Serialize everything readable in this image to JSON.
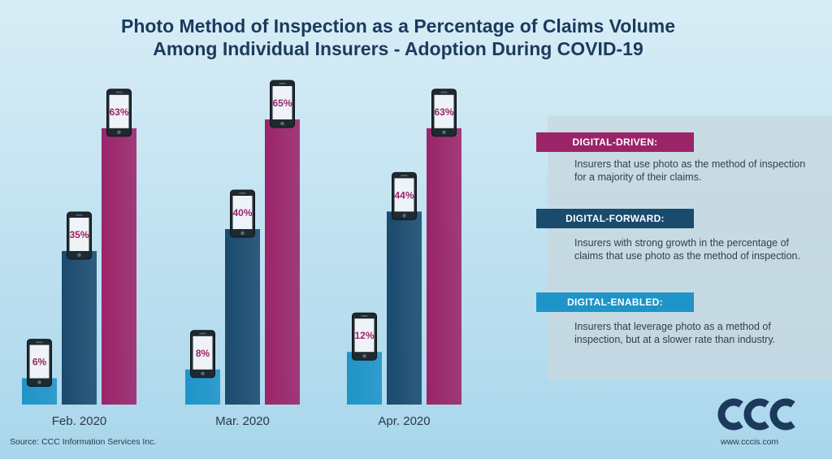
{
  "title_line1": "Photo Method of Inspection as a Percentage of Claims Volume",
  "title_line2": "Among Individual Insurers - Adoption During COVID-19",
  "chart_data": {
    "type": "bar",
    "categories": [
      "Feb. 2020",
      "Mar. 2020",
      "Apr. 2020"
    ],
    "series": [
      {
        "name": "DIGITAL-ENABLED",
        "values": [
          6,
          8,
          12
        ],
        "color": "#1e94c8"
      },
      {
        "name": "DIGITAL-FORWARD",
        "values": [
          35,
          40,
          44
        ],
        "color": "#1a4a6e"
      },
      {
        "name": "DIGITAL-DRIVEN",
        "values": [
          63,
          65,
          63
        ],
        "color": "#9b2469"
      }
    ],
    "value_suffix": "%",
    "data_label_style": "phone-icon",
    "ylim": [
      0,
      100
    ],
    "grid": false,
    "legend_position": "right"
  },
  "legend": [
    {
      "label": "DIGITAL-DRIVEN",
      "color": "#9b2469",
      "description": "Insurers that use photo as the method of inspection for a majority of their claims."
    },
    {
      "label": "DIGITAL-FORWARD:",
      "color": "#1a4a6e",
      "description": "Insurers with strong growth in the percentage of claims that use photo as the method of inspection."
    },
    {
      "label": "DIGITAL-ENABLED:",
      "color": "#1e94c8",
      "description": "Insurers that leverage photo as a method of inspection, but at a slower rate than industry."
    }
  ],
  "legend_labels_display": [
    "DIGITAL-DRIVEN:",
    "DIGITAL-FORWARD:",
    "DIGITAL-ENABLED:"
  ],
  "source": "Source: CCC Information Services Inc.",
  "logo_text": "CCC",
  "website": "www.cccis.com"
}
